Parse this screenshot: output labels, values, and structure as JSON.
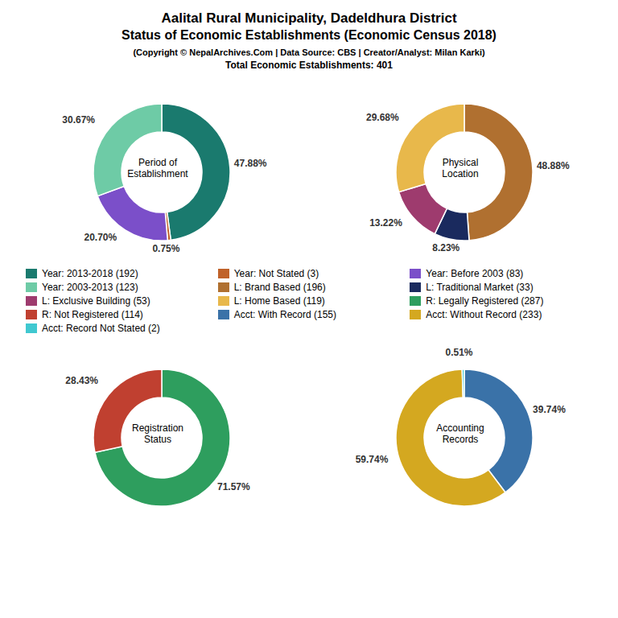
{
  "title": "Aalital Rural Municipality, Dadeldhura District\nStatus of Economic Establishments (Economic Census 2018)",
  "subtitle": "(Copyright © NepalArchives.Com | Data Source: CBS | Creator/Analyst: Milan Karki)",
  "annotations": [
    "Total Economic Establishments: 401"
  ],
  "legend": "center",
  "chart_data": [
    {
      "type": "pie",
      "title": "Period of\nEstablishment",
      "categories": [
        "Year: 2013-2018 (192)",
        "Year: Not Stated (3)",
        "Year: Before 2003 (83)",
        "Year: 2003-2013 (123)"
      ],
      "values": [
        47.88,
        0.75,
        20.7,
        30.67
      ],
      "value_labels": [
        "47.88%",
        "0.75%",
        "20.70%",
        "30.67%"
      ],
      "colors": [
        "#1a7a6e",
        "#c0622a",
        "#7b4fc9",
        "#6ecba6"
      ],
      "data_labels": true
    },
    {
      "type": "pie",
      "title": "Physical\nLocation",
      "categories": [
        "L: Brand Based (196)",
        "L: Traditional Market (33)",
        "L: Exclusive Building (53)",
        "L: Home Based (119)"
      ],
      "values": [
        48.88,
        8.23,
        13.22,
        29.68
      ],
      "value_labels": [
        "48.88%",
        "8.23%",
        "13.22%",
        "29.68%"
      ],
      "colors": [
        "#b07030",
        "#1a2a5e",
        "#9e3b6e",
        "#e8b84b"
      ],
      "data_labels": true
    },
    {
      "type": "pie",
      "title": "Registration\nStatus",
      "categories": [
        "R: Legally Registered (287)",
        "R: Not Registered (114)"
      ],
      "values": [
        71.57,
        28.43
      ],
      "value_labels": [
        "71.57%",
        "28.43%"
      ],
      "colors": [
        "#2e9e5e",
        "#c04030"
      ],
      "data_labels": true
    },
    {
      "type": "pie",
      "title": "Accounting\nRecords",
      "categories": [
        "Acct: With Record (155)",
        "Acct: Without Record (233)",
        "Acct: Record Not Stated (2)"
      ],
      "values": [
        39.74,
        59.74,
        0.51
      ],
      "value_labels": [
        "39.74%",
        "59.74%",
        "0.51%"
      ],
      "colors": [
        "#3a72a8",
        "#d4a820",
        "#40c8d0"
      ],
      "data_labels": true
    }
  ]
}
